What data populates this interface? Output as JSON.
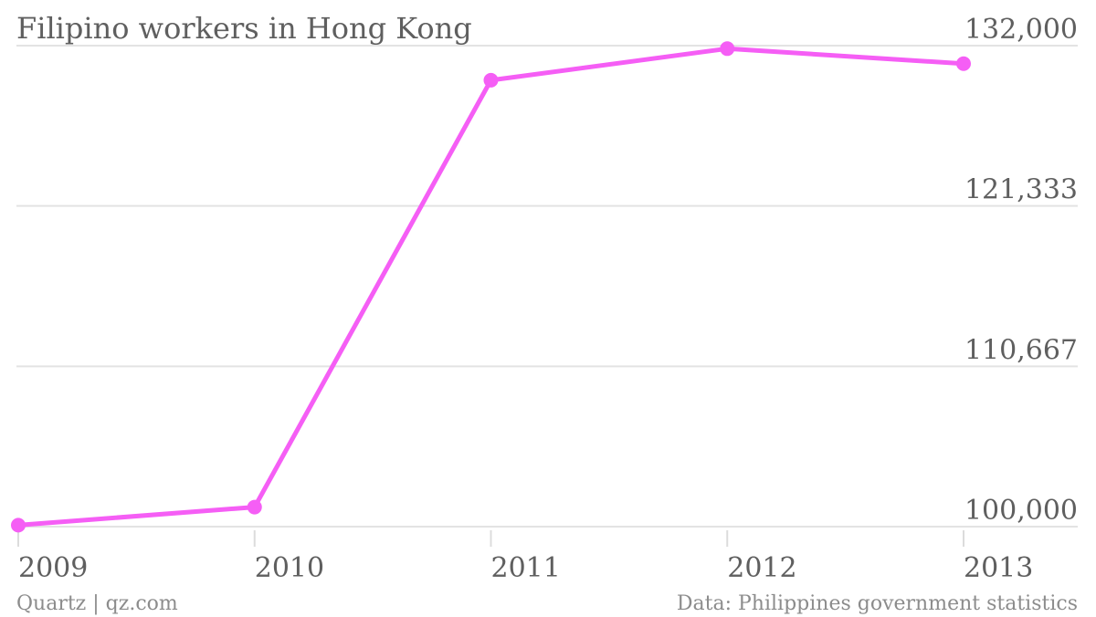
{
  "chart_data": {
    "type": "line",
    "title": "Filipino workers in Hong Kong",
    "xlabel": "",
    "ylabel": "",
    "categories": [
      "2009",
      "2010",
      "2011",
      "2012",
      "2013"
    ],
    "series": [
      {
        "values": [
          100100,
          101300,
          129700,
          131800,
          130800
        ]
      }
    ],
    "y_ticks": [
      "132,000",
      "121,333",
      "110,667",
      "100,000"
    ],
    "ylim": [
      100000,
      132000
    ],
    "grid": true,
    "legend": "none",
    "line_color": "#f55ef5"
  },
  "footer": {
    "source_left": "Quartz | qz.com",
    "source_right": "Data: Philippines government statistics"
  }
}
